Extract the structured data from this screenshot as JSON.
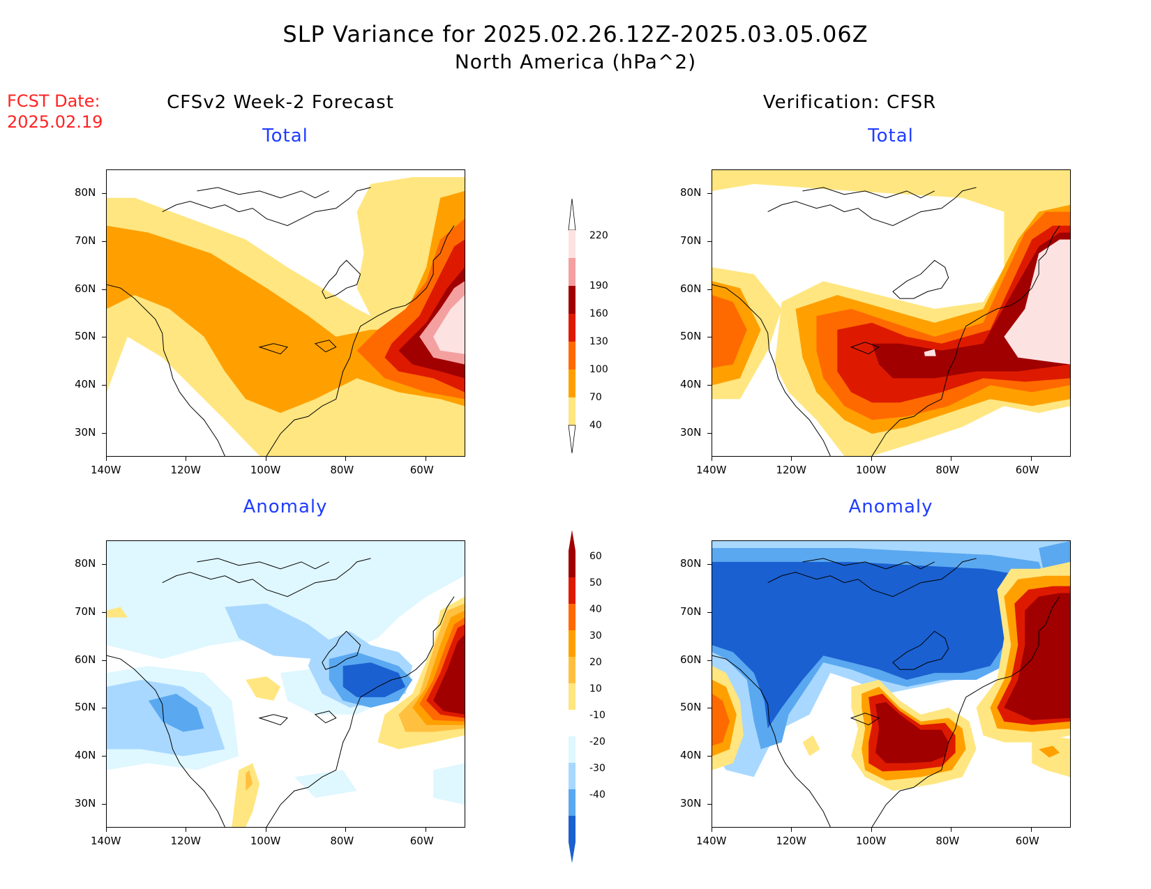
{
  "header": {
    "title": "SLP Variance for 2025.02.26.12Z-2025.03.05.06Z",
    "subtitle": "North America (hPa^2)",
    "fcst_line1": "FCST Date:",
    "fcst_line2": "2025.02.19"
  },
  "columns": {
    "left": "CFSv2 Week-2 Forecast",
    "right": "Verification: CFSR"
  },
  "panels": {
    "total_label": "Total",
    "anomaly_label": "Anomaly"
  },
  "axes": {
    "lat_labels": [
      "80N",
      "70N",
      "60N",
      "50N",
      "40N",
      "30N"
    ],
    "lon_labels": [
      "140W",
      "120W",
      "100W",
      "80W",
      "60W"
    ]
  },
  "colorbars": {
    "total": {
      "levels": [
        "220",
        "190",
        "160",
        "130",
        "100",
        "70",
        "40"
      ],
      "colors": [
        "#fde2e2",
        "#f4a0a0",
        "#a00000",
        "#dd1a00",
        "#ff6a00",
        "#ffa000",
        "#ffe680"
      ]
    },
    "anomaly": {
      "levels": [
        "60",
        "50",
        "40",
        "30",
        "20",
        "10",
        "-10",
        "-20",
        "-30",
        "-40"
      ],
      "colors": [
        "#a00000",
        "#dd1a00",
        "#ff6a00",
        "#ffa000",
        "#ffc040",
        "#ffe680",
        "#ffffff",
        "#dff7ff",
        "#a8d8ff",
        "#5aa8f0",
        "#1a60d0"
      ]
    }
  }
}
